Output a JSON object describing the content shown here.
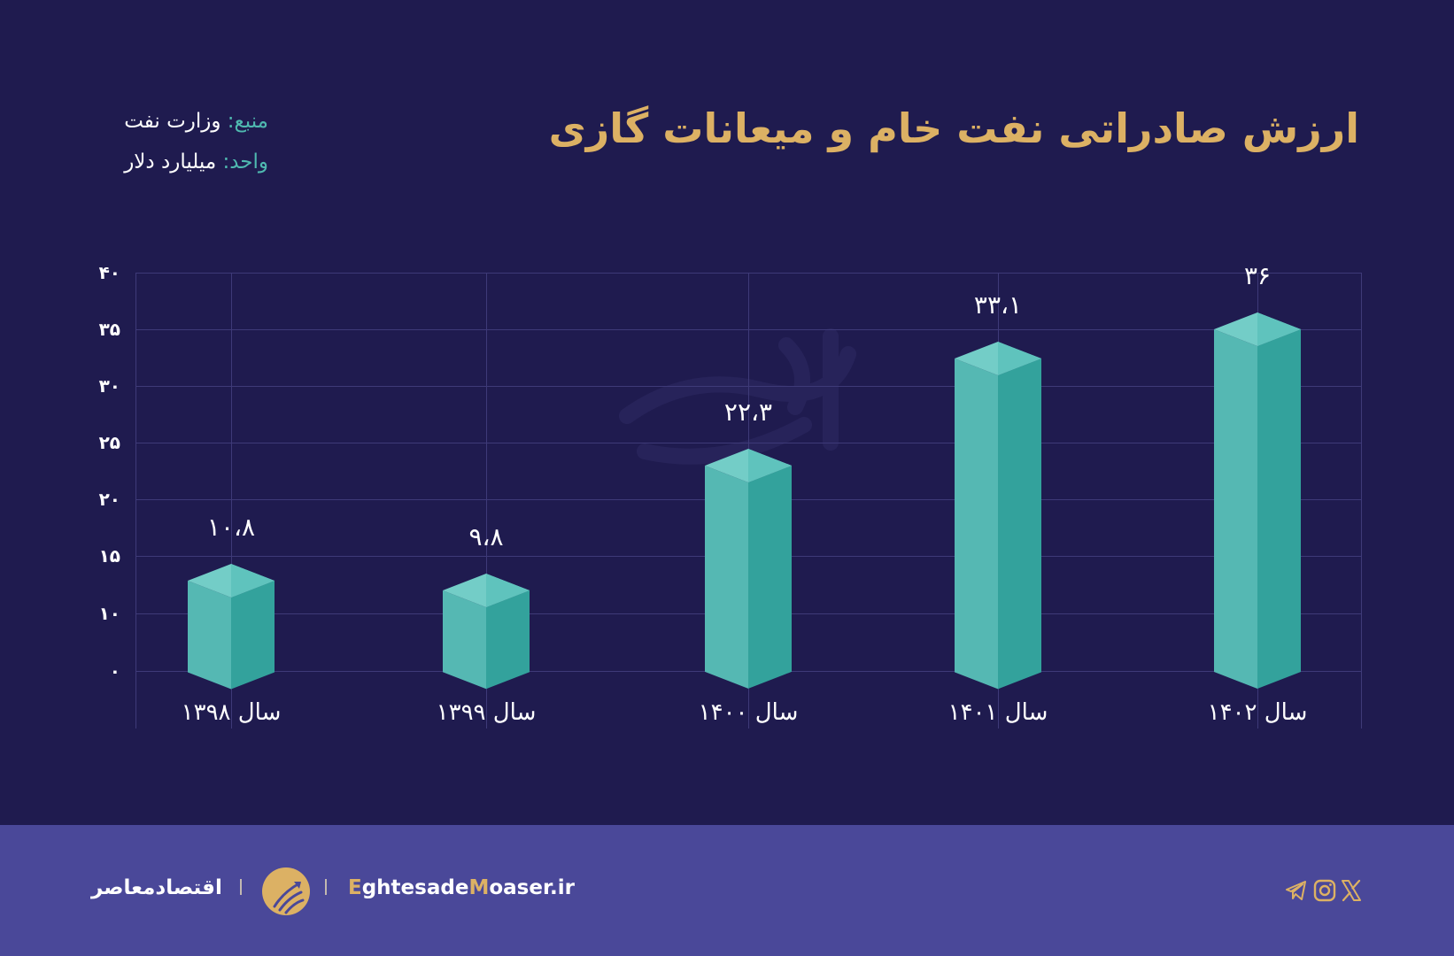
{
  "header": {
    "title": "ارزش صادراتی نفت خام و میعانات گازی",
    "source_key": "منبع:",
    "source_value": "وزارت نفت",
    "unit_key": "واحد:",
    "unit_value": "میلیارد دلار"
  },
  "chart_data": {
    "type": "bar",
    "title": "ارزش صادراتی نفت خام و میعانات گازی",
    "xlabel": "",
    "ylabel": "میلیارد دلار",
    "categories": [
      "سال ۱۳۹۸",
      "سال ۱۳۹۹",
      "سال ۱۴۰۰",
      "سال ۱۴۰۱",
      "سال ۱۴۰۲"
    ],
    "values": [
      10.8,
      9.8,
      22.3,
      33.1,
      36
    ],
    "value_labels": [
      "۱۰،۸",
      "۹،۸",
      "۲۲،۳",
      "۳۳،۱",
      "۳۶"
    ],
    "y_ticks": [
      "۴۰",
      "۳۵",
      "۳۰",
      "۲۵",
      "۲۰",
      "۱۵",
      "۱۰",
      "۰"
    ],
    "ylim": [
      0,
      40
    ],
    "grid": true,
    "legend": "none",
    "bar_style": "3d-isometric-prism",
    "colors": {
      "bar_left": "#55b8b3",
      "bar_right": "#33a29c",
      "bar_top": "#73cdc7"
    }
  },
  "footer": {
    "brand_fa": "اقتصادمعاصر",
    "site_prefix_accent": "E",
    "site_part1": "ghtesade",
    "site_accent2": "M",
    "site_part2": "oaser.ir",
    "social_icons": [
      "telegram-icon",
      "instagram-icon",
      "x-icon"
    ]
  },
  "colors": {
    "background": "#1f1b4f",
    "footer": "#4a4899",
    "title": "#dcb164",
    "accent_teal": "#4fb9b0"
  }
}
